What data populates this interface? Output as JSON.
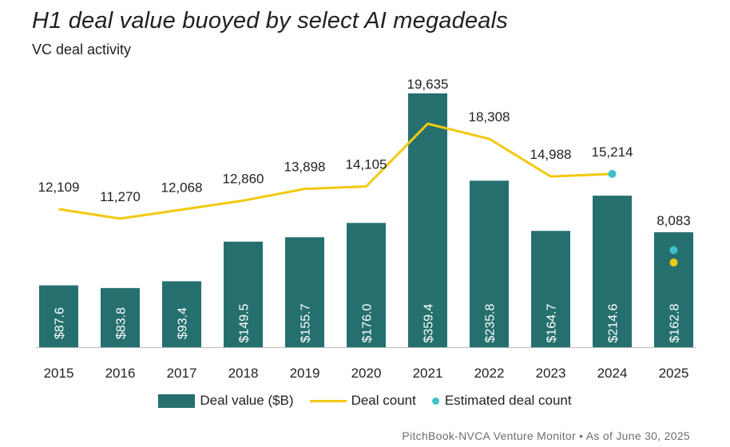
{
  "title": "H1 deal value buoyed by select AI megadeals",
  "subtitle": "VC deal activity",
  "source": "PitchBook-NVCA Venture Monitor • As of June 30, 2025",
  "colors": {
    "bar": "#25706f",
    "line": "#f2c90f",
    "estimated_count": "#3fc1c9",
    "estimated_value": "#f2c90f"
  },
  "chart_data": {
    "type": "bar",
    "categories": [
      "2015",
      "2016",
      "2017",
      "2018",
      "2019",
      "2020",
      "2021",
      "2022",
      "2023",
      "2024",
      "2025"
    ],
    "series": [
      {
        "name": "Deal value ($B)",
        "type": "bar",
        "values": [
          87.6,
          83.8,
          93.4,
          149.5,
          155.7,
          176.0,
          359.4,
          235.8,
          164.7,
          214.6,
          162.8
        ],
        "labels": [
          "$87.6",
          "$83.8",
          "$93.4",
          "$149.5",
          "$155.7",
          "$176.0",
          "$359.4",
          "$235.8",
          "$164.7",
          "$214.6",
          "$162.8"
        ]
      },
      {
        "name": "Deal count",
        "type": "line",
        "values": [
          12109,
          11270,
          12068,
          12860,
          13898,
          14105,
          19635,
          18308,
          14988,
          15214,
          8083
        ],
        "labels": [
          "12,109",
          "11,270",
          "12,068",
          "12,860",
          "13,898",
          "14,105",
          "19,635",
          "18,308",
          "14,988",
          "15,214",
          "8,083"
        ],
        "line_through_index": 9
      },
      {
        "name": "Estimated deal count",
        "type": "scatter",
        "points": [
          {
            "category": "2024",
            "value": 15214,
            "color": "#3fc1c9"
          },
          {
            "category": "2025",
            "value": 8500,
            "color": "#3fc1c9"
          },
          {
            "category": "2025",
            "value": 7400,
            "color": "#f2c90f"
          }
        ]
      }
    ],
    "legend": [
      "Deal value ($B)",
      "Deal count",
      "Estimated deal count"
    ],
    "legend_position": "bottom"
  }
}
